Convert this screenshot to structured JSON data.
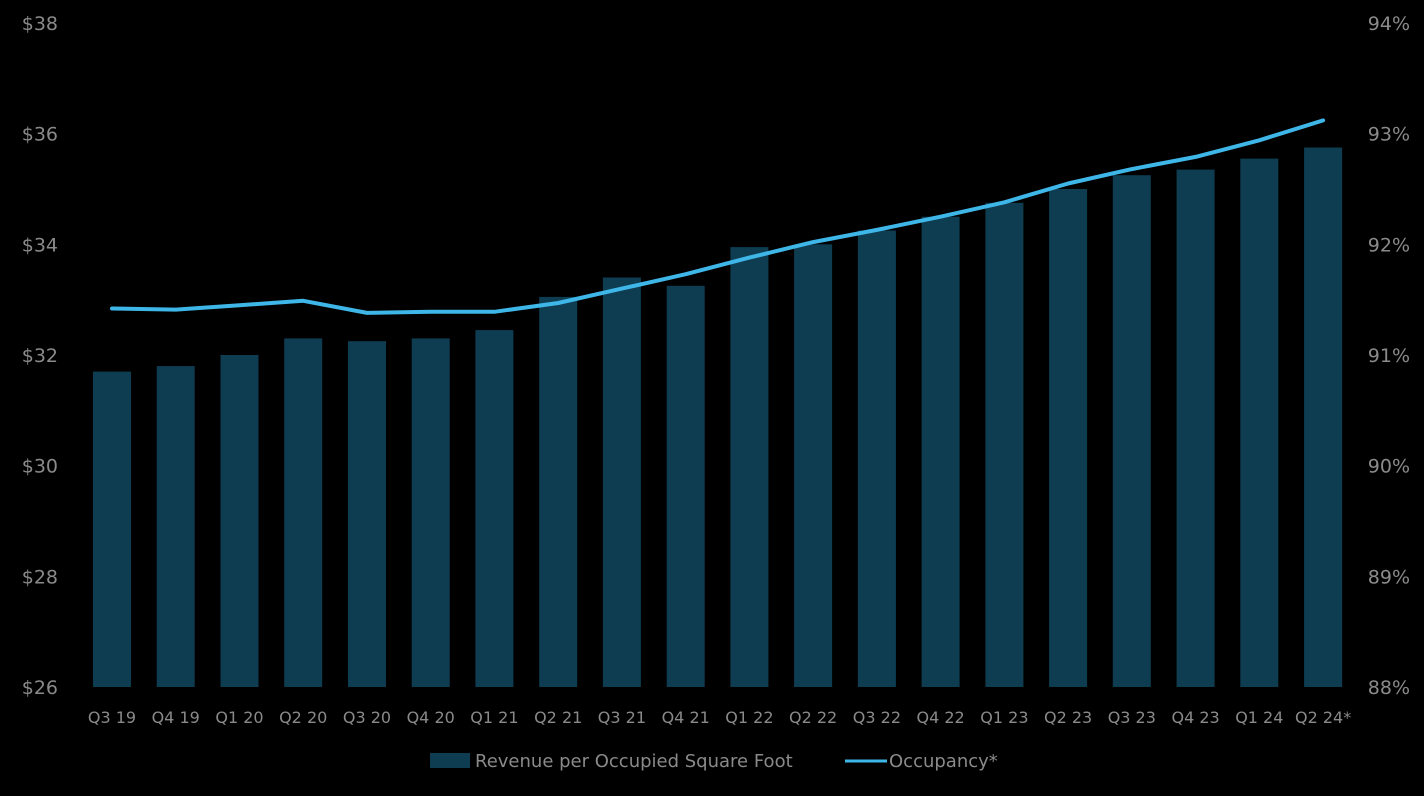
{
  "chart_data": {
    "type": "bar",
    "categories": [
      "Q3 19",
      "Q4 19",
      "Q1 20",
      "Q2 20",
      "Q3 20",
      "Q4 20",
      "Q1 21",
      "Q2 21",
      "Q3 21",
      "Q4 21",
      "Q1 22",
      "Q2 22",
      "Q3 22",
      "Q4 22",
      "Q1 23",
      "Q2 23",
      "Q3 23",
      "Q4 23",
      "Q1 24",
      "Q2 24*"
    ],
    "series": [
      {
        "name": "Revenue per Occupied Square Foot",
        "type": "bar",
        "axis": "left",
        "color": "#0e3d52",
        "values": [
          31.7,
          31.8,
          32.0,
          32.3,
          32.25,
          32.3,
          32.45,
          33.05,
          33.4,
          33.25,
          33.95,
          34.0,
          34.25,
          34.5,
          34.75,
          35.0,
          35.25,
          35.35,
          35.55,
          35.75
        ]
      },
      {
        "name": "Occupancy*",
        "type": "line",
        "axis": "right",
        "color": "#3fb6e8",
        "values": [
          91.42,
          91.41,
          91.45,
          91.49,
          91.38,
          91.39,
          91.39,
          91.47,
          91.6,
          91.73,
          91.88,
          92.02,
          92.13,
          92.25,
          92.38,
          92.55,
          92.68,
          92.79,
          92.94,
          93.12
        ]
      }
    ],
    "y_left": {
      "ylim": [
        26,
        38
      ],
      "ticks": [
        26,
        28,
        30,
        32,
        34,
        36,
        38
      ],
      "tick_labels": [
        "$26",
        "$28",
        "$30",
        "$32",
        "$34",
        "$36",
        "$38"
      ]
    },
    "y_right": {
      "ylim": [
        88,
        94
      ],
      "ticks": [
        88,
        89,
        90,
        91,
        92,
        93,
        94
      ],
      "tick_labels": [
        "88%",
        "89%",
        "90%",
        "91%",
        "92%",
        "93%",
        "94%"
      ]
    },
    "grid": false,
    "legend": {
      "position": "bottom-center",
      "entries": [
        "Revenue per Occupied Square Foot",
        "Occupancy*"
      ]
    }
  }
}
